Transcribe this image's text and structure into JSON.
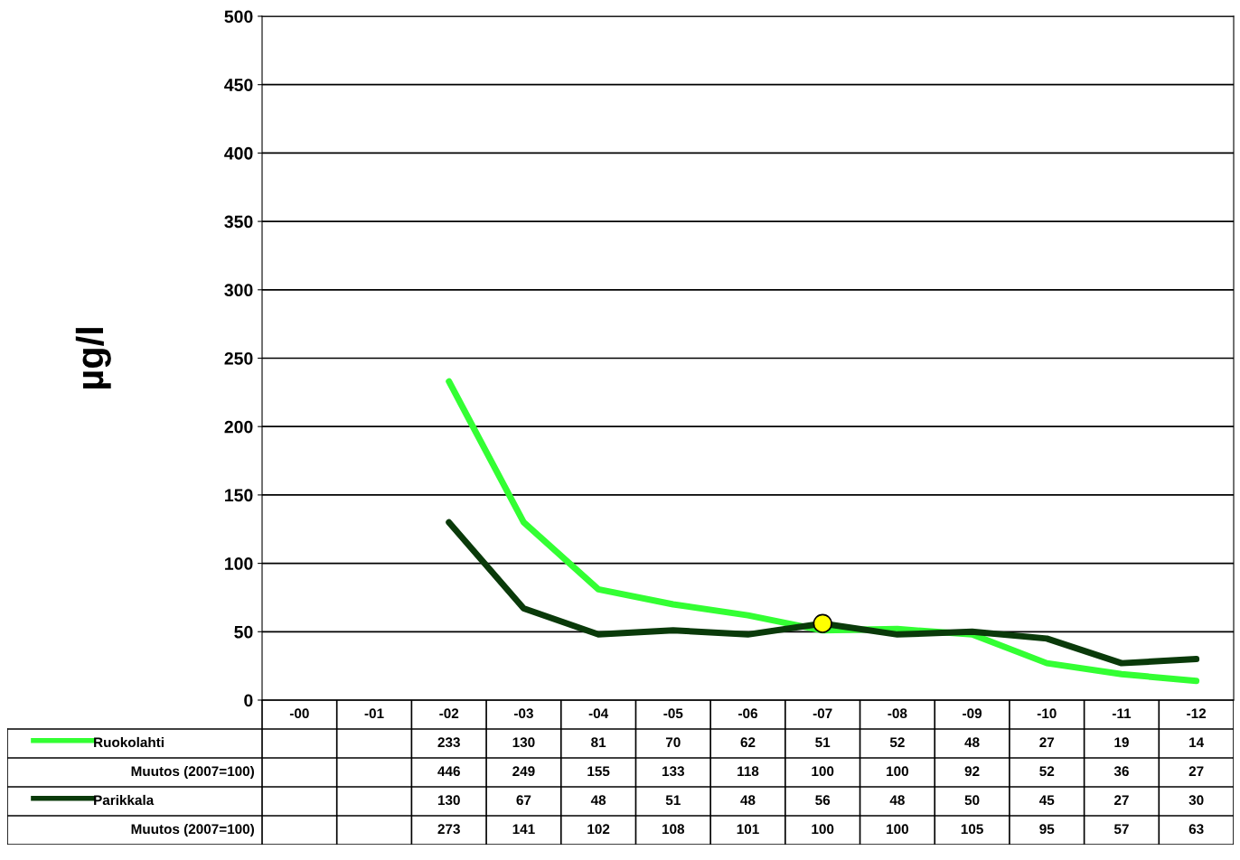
{
  "chart_data": {
    "type": "line",
    "ylabel": "µg/l",
    "categories": [
      "-00",
      "-01",
      "-02",
      "-03",
      "-04",
      "-05",
      "-06",
      "-07",
      "-08",
      "-09",
      "-10",
      "-11",
      "-12"
    ],
    "ylim": [
      0,
      500
    ],
    "yticks": [
      0,
      50,
      100,
      150,
      200,
      250,
      300,
      350,
      400,
      450,
      500
    ],
    "grid": "y",
    "legend": "bottom",
    "series": [
      {
        "name": "Ruokolahti",
        "color": "#33ff33",
        "values": [
          null,
          null,
          233,
          130,
          81,
          70,
          62,
          51,
          52,
          48,
          27,
          19,
          14
        ],
        "value_labels": [
          null,
          null,
          "233",
          "130",
          "81",
          "70",
          "62",
          "51",
          "52",
          "48",
          "27",
          "19",
          "14"
        ]
      },
      {
        "name": "Parikkala",
        "color": "#0a3a0a",
        "values": [
          null,
          null,
          130,
          67,
          48,
          51,
          48,
          56,
          48,
          50,
          45,
          27,
          30
        ],
        "value_labels": [
          null,
          null,
          "130",
          "67",
          "48",
          "51",
          "48",
          "56",
          "48",
          "50",
          "45",
          "27",
          "30"
        ]
      },
      {
        "type": "scatter",
        "color": "#ffff00",
        "values": [
          null,
          null,
          null,
          null,
          null,
          null,
          null,
          56,
          null,
          null,
          null,
          null,
          null
        ]
      }
    ],
    "annotations": [
      "Muutos (2007=100)",
      "446",
      "249",
      "155",
      "133",
      "118",
      "100",
      "100",
      "92",
      "52",
      "36",
      "27",
      "Muutos (2007=100)",
      "273",
      "141",
      "102",
      "108",
      "101",
      "100",
      "100",
      "105",
      "95",
      "57",
      "63"
    ]
  }
}
